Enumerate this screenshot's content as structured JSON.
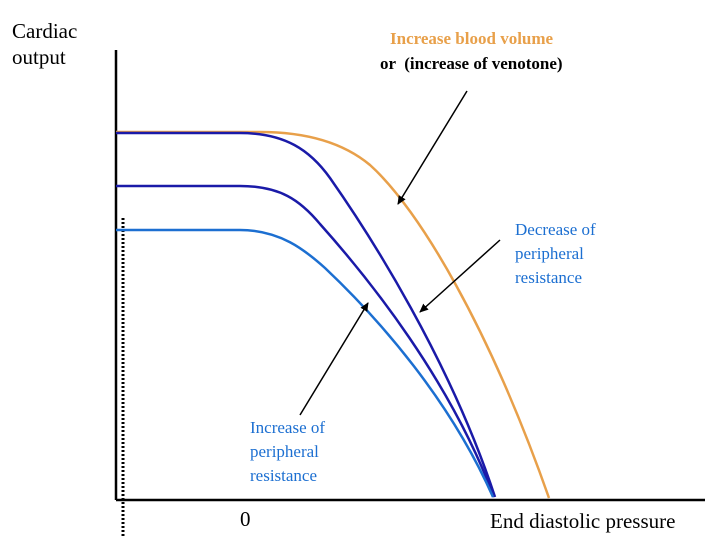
{
  "labels": {
    "y_axis": "Cardiac\noutput",
    "x_axis": "End diastolic pressure",
    "origin": "0",
    "increase_blood_volume": "Increase blood volume",
    "venotone": "or  (increase of venotone)",
    "decrease_resistance": "Decrease of\nperipheral\nresistance",
    "increase_resistance": "Increase of\nperipheral\nresistance"
  },
  "colors": {
    "axis": "#000000",
    "orange_curve": "#e8a04a",
    "top_dark_curve": "#1a1aa8",
    "middle_dark_curve": "#1a1aa8",
    "light_curve": "#1c6fd1",
    "label_blue": "#1c6fd1",
    "label_orange": "#e8a04a"
  }
}
